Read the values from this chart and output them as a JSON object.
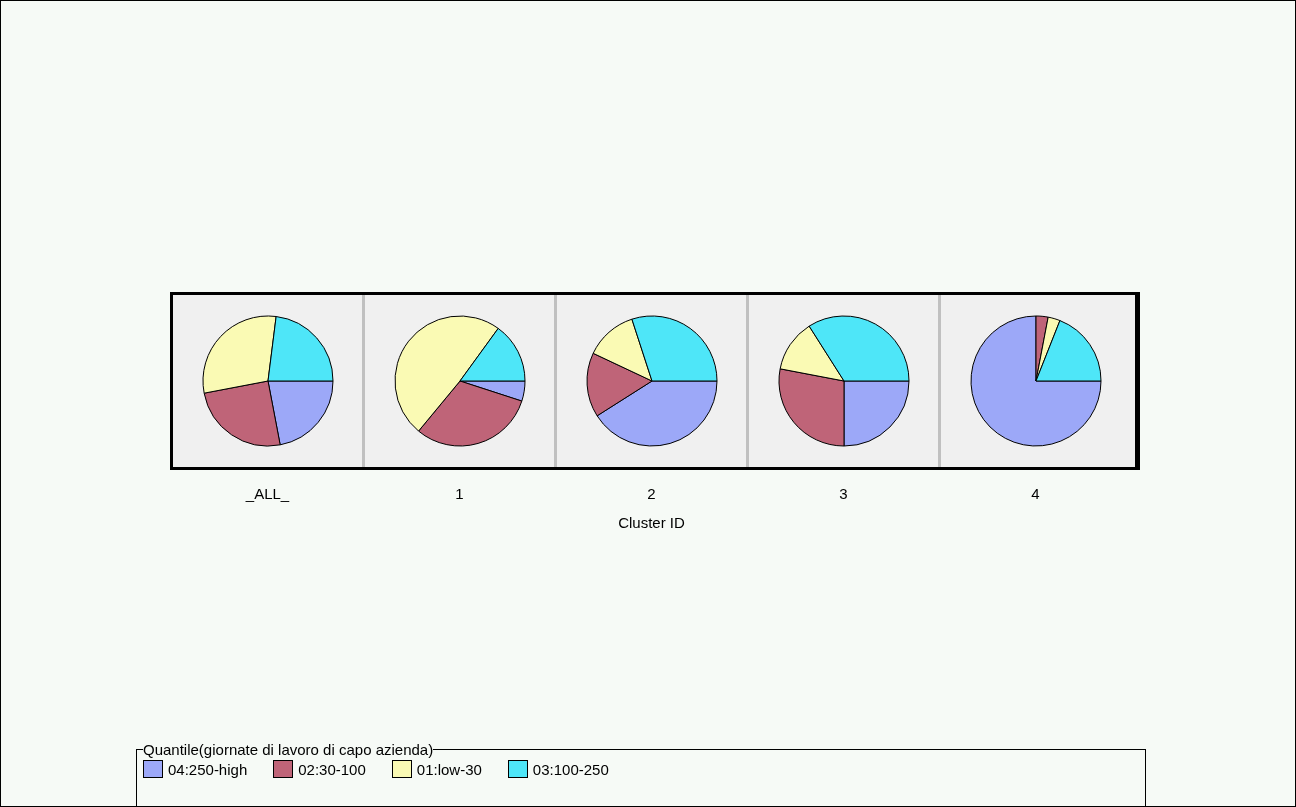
{
  "chart_data": [
    {
      "type": "pie",
      "xlabel": "_ALL_",
      "categories": [
        "04:250-high",
        "02:30-100",
        "01:low-30",
        "03:100-250"
      ],
      "values": [
        22,
        25,
        30,
        23
      ],
      "colors": [
        "#9ca8f8",
        "#bf6478",
        "#fafab4",
        "#4ee6f8"
      ],
      "legend": "bottom",
      "legend_title": "Quantile(giornate di lavoro di capo azienda)"
    },
    {
      "type": "pie",
      "xlabel": "1",
      "categories": [
        null,
        null,
        null,
        null
      ],
      "values": [
        5,
        31,
        49,
        15
      ],
      "colors": [
        "#9ca8f8",
        "#bf6478",
        "#fafab4",
        "#4ee6f8"
      ]
    },
    {
      "type": "pie",
      "xlabel": "2",
      "categories": [
        null,
        null,
        null,
        null
      ],
      "values": [
        41,
        16,
        13,
        30
      ],
      "colors": [
        "#9ca8f8",
        "#bf6478",
        "#fafab4",
        "#4ee6f8"
      ],
      "annotations": [
        "Cluster ID"
      ]
    },
    {
      "type": "pie",
      "xlabel": "3",
      "categories": [
        null,
        null,
        null,
        null
      ],
      "values": [
        25,
        28,
        13,
        34
      ],
      "colors": [
        "#9ca8f8",
        "#bf6478",
        "#fafab4",
        "#4ee6f8"
      ]
    },
    {
      "type": "pie",
      "xlabel": "4",
      "categories": [
        null,
        null,
        null,
        null
      ],
      "values": [
        75,
        3,
        3,
        19
      ],
      "colors": [
        "#9ca8f8",
        "#bf6478",
        "#fafab4",
        "#4ee6f8"
      ]
    }
  ]
}
